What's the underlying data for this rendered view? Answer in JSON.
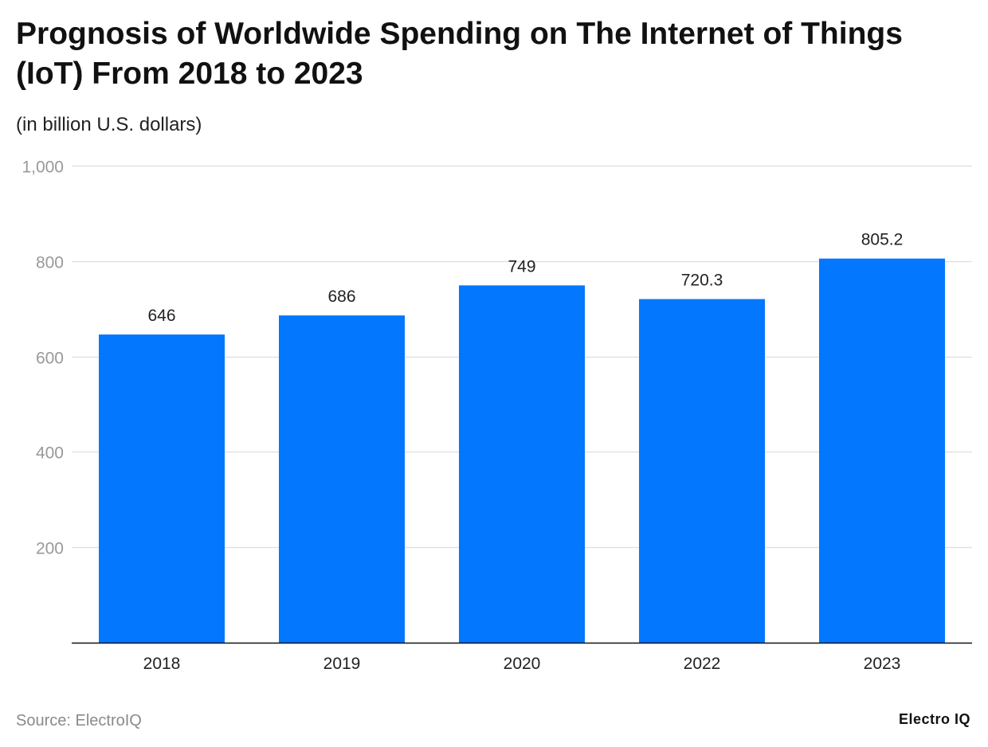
{
  "header": {
    "title": "Prognosis of Worldwide Spending on The Internet of Things (IoT) From 2018 to 2023",
    "subtitle": "(in billion U.S. dollars)"
  },
  "footer": {
    "source": "Source: ElectroIQ",
    "brand": "Electro IQ"
  },
  "colors": {
    "bar": "#0477ff",
    "grid": "#dedede",
    "axis": "#111111",
    "tick_label": "#999999"
  },
  "chart_data": {
    "type": "bar",
    "title": "Prognosis of Worldwide Spending on The Internet of Things (IoT) From 2018 to 2023",
    "subtitle": "(in billion U.S. dollars)",
    "xlabel": "",
    "ylabel": "",
    "categories": [
      "2018",
      "2019",
      "2020",
      "2022",
      "2023"
    ],
    "values": [
      646,
      686,
      749,
      720.3,
      805.2
    ],
    "value_labels": [
      "646",
      "686",
      "749",
      "720.3",
      "805.2"
    ],
    "ylim": [
      0,
      1000
    ],
    "yticks": [
      200,
      400,
      600,
      800,
      1000
    ],
    "ytick_labels": [
      "200",
      "400",
      "600",
      "800",
      "1,000"
    ],
    "grid": true,
    "legend": "none"
  }
}
